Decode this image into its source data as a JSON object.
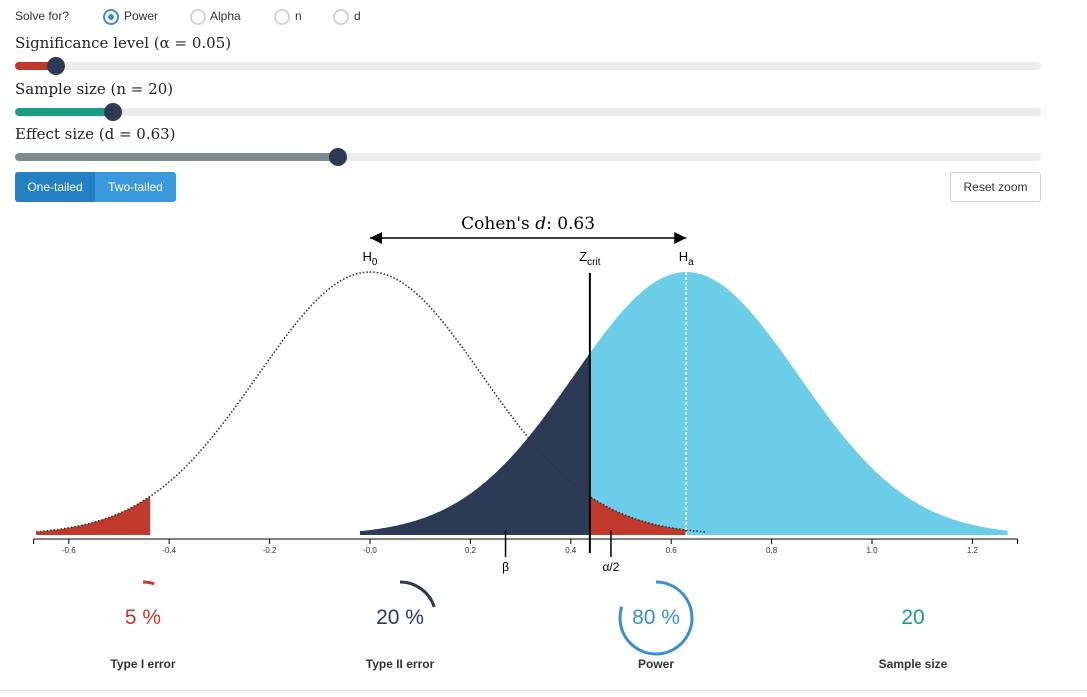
{
  "controls": {
    "solve_for_label": "Solve for?",
    "options": [
      {
        "label": "Power",
        "checked": true
      },
      {
        "label": "Alpha",
        "checked": false
      },
      {
        "label": "n",
        "checked": false
      },
      {
        "label": "d",
        "checked": false
      }
    ],
    "significance_label": "Significance level (α = 0.05)",
    "sample_size_label": "Sample size (n = 20)",
    "effect_size_label": "Effect size (d = 0.63)",
    "one_tailed_label": "One-tailed",
    "two_tailed_label": "Two-tailed",
    "reset_zoom_label": "Reset zoom",
    "colors": {
      "alpha": "#c0392b",
      "sample": "#1a9b83",
      "effect": "#7f8c8d",
      "thumb": "#2d3a55",
      "power": "#6ccde9",
      "beta": "#2d3a55"
    }
  },
  "sliders": {
    "alpha": 0.05,
    "n": 20,
    "d": 0.63
  },
  "chart": {
    "cohens_prefix": "Cohen's ",
    "cohens_d_symbol": "d",
    "cohens_value": ": 0.63",
    "h0_main": "H",
    "h0_sub": "0",
    "ha_main": "H",
    "ha_sub": "a",
    "zcrit_main": "Z",
    "zcrit_sub": "crit",
    "beta_marker": "β",
    "alpha_marker": "α/2"
  },
  "chart_data": {
    "type": "area",
    "x_ticks": [
      "-0.6",
      "-0.4",
      "-0.2",
      "-0.0",
      "0.2",
      "0.4",
      "0.6",
      "0.8",
      "1.0",
      "1.2"
    ],
    "xlim": [
      -0.67,
      1.29
    ],
    "null_mean": 0,
    "alt_mean": 0.63,
    "sd": 0.2236,
    "critical_value": 0.438,
    "beta_marker_x": 0.27,
    "alpha_marker_x": 0.48
  },
  "stats": [
    {
      "value": "5 %",
      "label": "Type I error",
      "color": "#c0392b",
      "fraction": 0.05
    },
    {
      "value": "20 %",
      "label": "Type II error",
      "color": "#2d3a55",
      "fraction": 0.2
    },
    {
      "value": "80 %",
      "label": "Power",
      "color": "#3b8fd0",
      "fraction": 0.8
    },
    {
      "value": "20",
      "label": "Sample size",
      "color": "#1a9b83",
      "fraction": 0
    }
  ]
}
